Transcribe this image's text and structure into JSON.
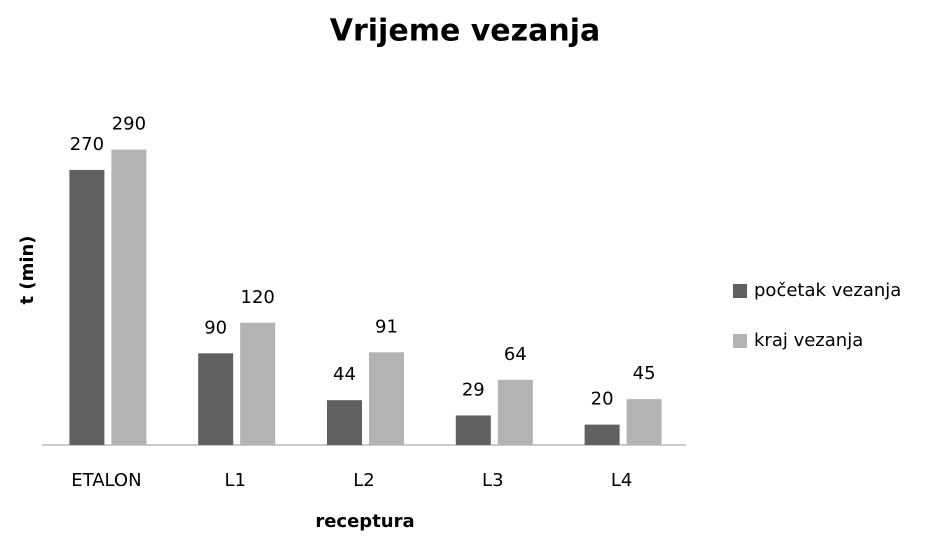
{
  "chart_data": {
    "type": "bar",
    "title": "Vrijeme vezanja",
    "x_label": "receptura",
    "y_label": "t (min)",
    "categories": [
      "ETALON",
      "L1",
      "L2",
      "L3",
      "L4"
    ],
    "series": [
      {
        "name": "početak vezanja",
        "color": "#606060",
        "values": [
          270,
          90,
          44,
          29,
          20
        ]
      },
      {
        "name": "kraj vezanja",
        "color": "#b3b3b3",
        "values": [
          290,
          120,
          91,
          64,
          45
        ]
      }
    ],
    "ylim": [
      0,
      320
    ],
    "legend": "right"
  }
}
